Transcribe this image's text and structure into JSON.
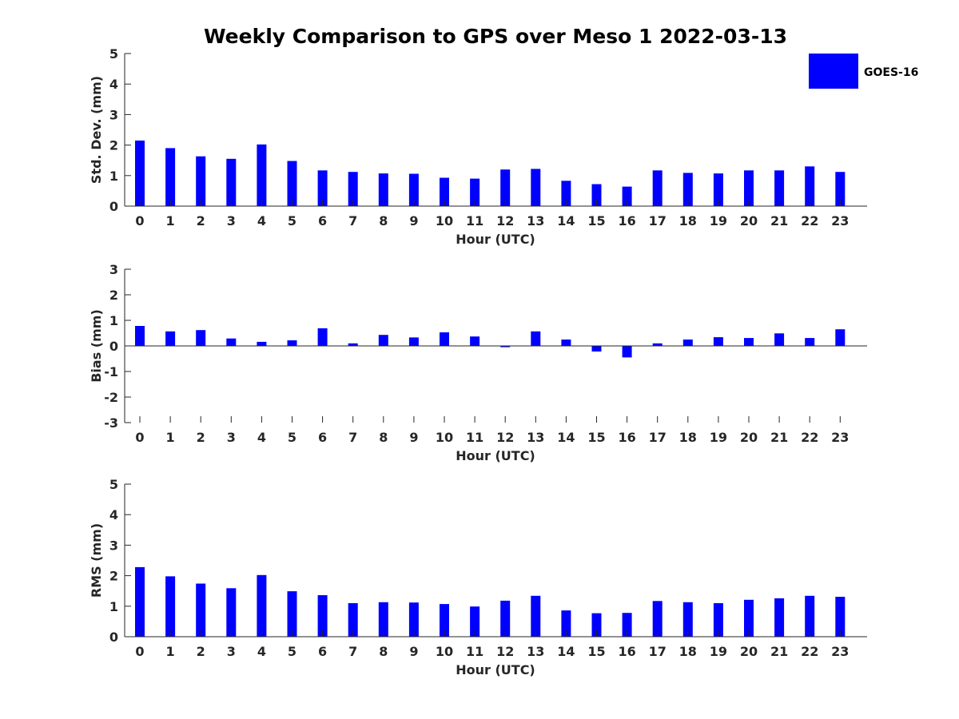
{
  "chart_data": {
    "type": "bar",
    "title": "Weekly Comparison to GPS over Meso 1 2022-03-13",
    "bar_color": "#0000ff",
    "legend": {
      "label": "GOES-16",
      "placement": "top-right"
    },
    "categories": [
      "0",
      "1",
      "2",
      "3",
      "4",
      "5",
      "6",
      "7",
      "8",
      "9",
      "10",
      "11",
      "12",
      "13",
      "14",
      "15",
      "16",
      "17",
      "18",
      "19",
      "20",
      "21",
      "22",
      "23"
    ],
    "panels": [
      {
        "id": "stddev",
        "ylabel": "Std. Dev. (mm)",
        "xlabel": "Hour (UTC)",
        "ylim": [
          0,
          5
        ],
        "yticks": [
          "0",
          "1",
          "2",
          "3",
          "4",
          "5"
        ],
        "series": [
          {
            "name": "GOES-16",
            "values": [
              2.15,
              1.9,
              1.63,
              1.55,
              2.02,
              1.48,
              1.17,
              1.12,
              1.07,
              1.06,
              0.93,
              0.9,
              1.2,
              1.22,
              0.83,
              0.72,
              0.64,
              1.17,
              1.09,
              1.07,
              1.17,
              1.17,
              1.3,
              1.12
            ]
          }
        ]
      },
      {
        "id": "bias",
        "ylabel": "Bias (mm)",
        "xlabel": "Hour (UTC)",
        "ylim": [
          -3,
          3
        ],
        "yticks": [
          "-3",
          "-2",
          "-1",
          "0",
          "1",
          "2",
          "3"
        ],
        "series": [
          {
            "name": "GOES-16",
            "values": [
              0.78,
              0.57,
              0.62,
              0.29,
              0.16,
              0.22,
              0.69,
              0.1,
              0.43,
              0.33,
              0.53,
              0.37,
              -0.05,
              0.57,
              0.25,
              -0.22,
              -0.45,
              0.1,
              0.25,
              0.34,
              0.31,
              0.49,
              0.31,
              0.65
            ]
          }
        ]
      },
      {
        "id": "rms",
        "ylabel": "RMS (mm)",
        "xlabel": "Hour (UTC)",
        "ylim": [
          0,
          5
        ],
        "yticks": [
          "0",
          "1",
          "2",
          "3",
          "4",
          "5"
        ],
        "series": [
          {
            "name": "GOES-16",
            "values": [
              2.28,
              1.98,
              1.74,
              1.59,
              2.02,
              1.49,
              1.36,
              1.1,
              1.13,
              1.12,
              1.07,
              0.99,
              1.18,
              1.34,
              0.86,
              0.77,
              0.78,
              1.17,
              1.13,
              1.1,
              1.21,
              1.26,
              1.34,
              1.31
            ]
          }
        ]
      }
    ]
  }
}
